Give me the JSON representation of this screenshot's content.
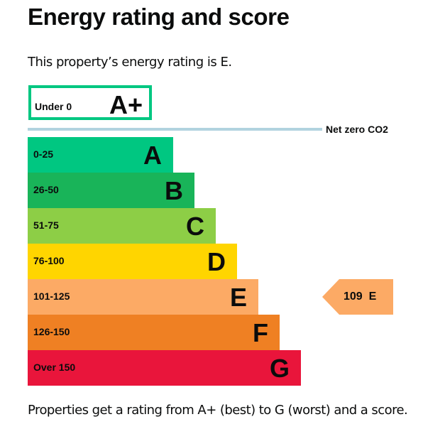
{
  "title": "Energy rating and score",
  "intro": "This property’s energy rating is E.",
  "aplus": {
    "range": "Under 0",
    "letter": "A+",
    "color": "#00c781"
  },
  "net_zero": {
    "label": "Net zero CO2",
    "color": "#b1d3df"
  },
  "bands": [
    {
      "range": "0-25",
      "letter": "A",
      "color": "#00c781"
    },
    {
      "range": "26-50",
      "letter": "B",
      "color": "#19b459"
    },
    {
      "range": "51-75",
      "letter": "C",
      "color": "#8dce46"
    },
    {
      "range": "76-100",
      "letter": "D",
      "color": "#ffd500"
    },
    {
      "range": "101-125",
      "letter": "E",
      "color": "#fcaa65"
    },
    {
      "range": "126-150",
      "letter": "F",
      "color": "#ef8023"
    },
    {
      "range": "Over 150",
      "letter": "G",
      "color": "#e9153b"
    }
  ],
  "current": {
    "score": "109",
    "rating": "E",
    "color": "#fcaa65"
  },
  "footer": "Properties get a rating from A+ (best) to G (worst) and a score."
}
